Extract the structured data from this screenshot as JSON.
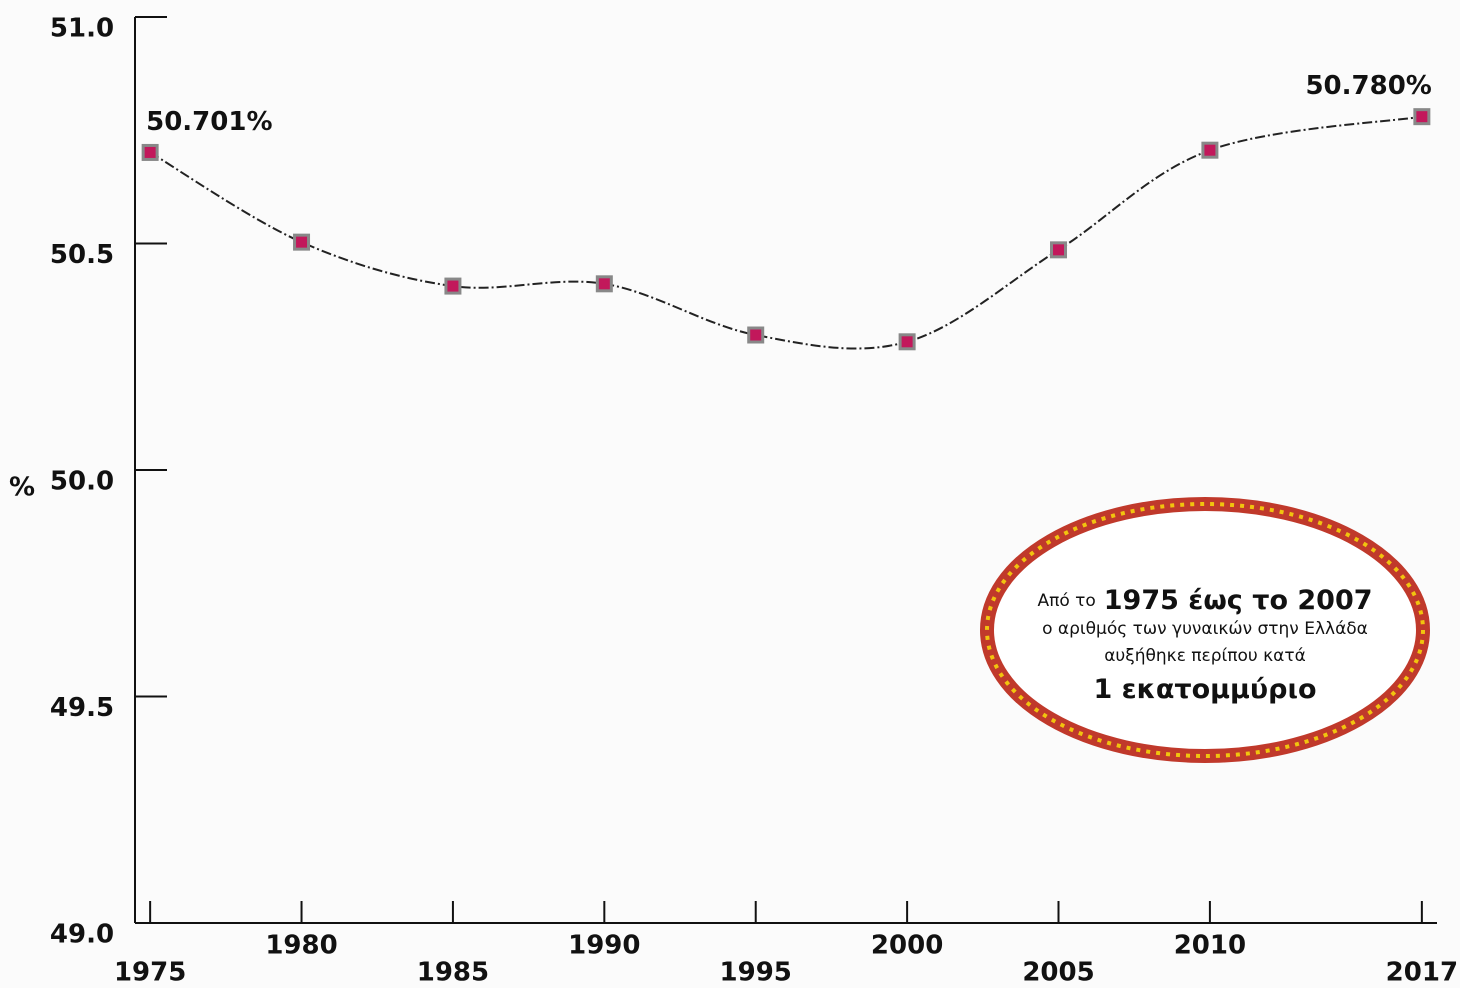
{
  "chart_data": {
    "type": "line",
    "y_label": "%",
    "x": [
      1975,
      1980,
      1985,
      1990,
      1995,
      2000,
      2005,
      2010,
      2017
    ],
    "series": [
      {
        "color": "#222222",
        "marker_color": "#c2185b",
        "values": [
          50.701,
          50.503,
          50.406,
          50.411,
          50.298,
          50.283,
          50.486,
          50.706,
          50.78
        ],
        "value_labels": [
          "50.701%",
          null,
          null,
          null,
          null,
          null,
          null,
          null,
          "50.780%"
        ]
      }
    ],
    "xlim": [
      1974.5,
      2017.5
    ],
    "xticks": [
      1975,
      1980,
      1985,
      1990,
      1995,
      2000,
      2005,
      2010,
      2017
    ],
    "ylim": [
      49.0,
      51.0
    ],
    "yticks": [
      {
        "value": 49.0,
        "label": "49.0"
      },
      {
        "value": 49.5,
        "label": "49.5"
      },
      {
        "value": 50.0,
        "label": "50.0"
      },
      {
        "value": 50.5,
        "label": "50.5"
      },
      {
        "value": 51.0,
        "label": "51.0"
      }
    ],
    "grid": false,
    "annotation": [
      [
        {
          "text": "Από το",
          "bold": false
        },
        {
          "text": "1975 έως το 2007",
          "bold": true
        }
      ],
      [
        {
          "text": "ο αριθμός των γυναικών στην Ελλάδα",
          "bold": false
        }
      ],
      [
        {
          "text": "αυξήθηκε περίπου κατά",
          "bold": false
        }
      ],
      [
        {
          "text": "1 εκατομμύριο",
          "bold": true
        }
      ]
    ]
  }
}
